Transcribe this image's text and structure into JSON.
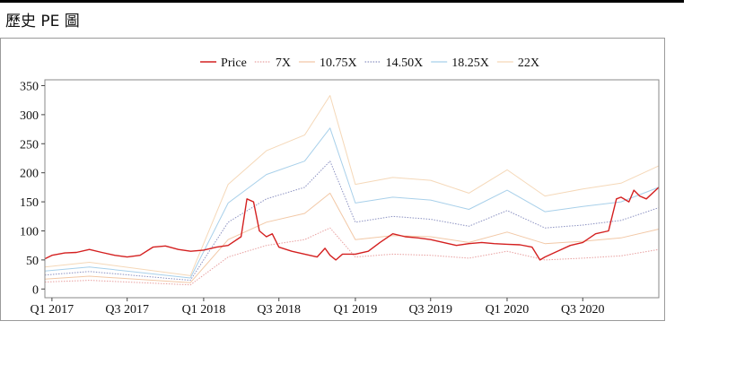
{
  "page": {
    "title": "歷史 PE 圖"
  },
  "chart_data": {
    "type": "line",
    "title": "",
    "xlabel": "",
    "ylabel": "",
    "xlim": [
      "2016-12-15",
      "2020-12-31"
    ],
    "ylim": [
      -15,
      360
    ],
    "yticks": [
      0,
      50,
      100,
      150,
      200,
      250,
      300,
      350
    ],
    "xticks": [
      {
        "date": "2017-01-01",
        "label": "Q1 2017"
      },
      {
        "date": "2017-07-01",
        "label": "Q3 2017"
      },
      {
        "date": "2018-01-01",
        "label": "Q1 2018"
      },
      {
        "date": "2018-07-01",
        "label": "Q3 2018"
      },
      {
        "date": "2019-01-01",
        "label": "Q1 2019"
      },
      {
        "date": "2019-07-01",
        "label": "Q3 2019"
      },
      {
        "date": "2020-01-01",
        "label": "Q1 2020"
      },
      {
        "date": "2020-07-01",
        "label": "Q3 2020"
      }
    ],
    "grid": false,
    "legend_position": "top",
    "series": [
      {
        "name": "Price",
        "color": "#d42020",
        "style": "solid",
        "points": [
          [
            "2016-12-15",
            52
          ],
          [
            "2017-01-01",
            58
          ],
          [
            "2017-02-01",
            62
          ],
          [
            "2017-03-01",
            63
          ],
          [
            "2017-04-01",
            68
          ],
          [
            "2017-05-01",
            63
          ],
          [
            "2017-06-01",
            58
          ],
          [
            "2017-07-01",
            55
          ],
          [
            "2017-08-01",
            58
          ],
          [
            "2017-09-01",
            72
          ],
          [
            "2017-10-01",
            74
          ],
          [
            "2017-11-01",
            68
          ],
          [
            "2017-12-01",
            65
          ],
          [
            "2018-01-01",
            67
          ],
          [
            "2018-02-01",
            72
          ],
          [
            "2018-03-01",
            75
          ],
          [
            "2018-04-01",
            90
          ],
          [
            "2018-04-15",
            155
          ],
          [
            "2018-05-01",
            150
          ],
          [
            "2018-05-15",
            100
          ],
          [
            "2018-06-01",
            90
          ],
          [
            "2018-06-15",
            95
          ],
          [
            "2018-07-01",
            72
          ],
          [
            "2018-08-01",
            65
          ],
          [
            "2018-09-01",
            60
          ],
          [
            "2018-10-01",
            55
          ],
          [
            "2018-10-20",
            70
          ],
          [
            "2018-11-01",
            58
          ],
          [
            "2018-11-15",
            50
          ],
          [
            "2018-12-01",
            60
          ],
          [
            "2019-01-01",
            60
          ],
          [
            "2019-02-01",
            65
          ],
          [
            "2019-03-01",
            80
          ],
          [
            "2019-04-01",
            95
          ],
          [
            "2019-05-01",
            90
          ],
          [
            "2019-06-01",
            88
          ],
          [
            "2019-07-01",
            85
          ],
          [
            "2019-08-01",
            80
          ],
          [
            "2019-09-01",
            75
          ],
          [
            "2019-10-01",
            78
          ],
          [
            "2019-11-01",
            80
          ],
          [
            "2019-12-01",
            78
          ],
          [
            "2020-01-01",
            77
          ],
          [
            "2020-02-01",
            76
          ],
          [
            "2020-03-01",
            72
          ],
          [
            "2020-03-20",
            50
          ],
          [
            "2020-04-01",
            55
          ],
          [
            "2020-05-01",
            65
          ],
          [
            "2020-06-01",
            75
          ],
          [
            "2020-07-01",
            80
          ],
          [
            "2020-08-01",
            95
          ],
          [
            "2020-09-01",
            100
          ],
          [
            "2020-09-20",
            155
          ],
          [
            "2020-10-01",
            158
          ],
          [
            "2020-10-20",
            150
          ],
          [
            "2020-11-01",
            170
          ],
          [
            "2020-11-15",
            160
          ],
          [
            "2020-12-01",
            155
          ],
          [
            "2020-12-31",
            175
          ]
        ]
      },
      {
        "name": "7X",
        "color": "#e8a0a0",
        "style": "dotted",
        "points": [
          [
            "2016-12-15",
            12
          ],
          [
            "2017-04-01",
            15
          ],
          [
            "2017-11-30",
            7
          ],
          [
            "2018-03-01",
            55
          ],
          [
            "2018-06-01",
            75
          ],
          [
            "2018-09-01",
            85
          ],
          [
            "2018-11-01",
            105
          ],
          [
            "2019-01-01",
            55
          ],
          [
            "2019-04-01",
            60
          ],
          [
            "2019-07-01",
            58
          ],
          [
            "2019-10-01",
            53
          ],
          [
            "2020-01-01",
            65
          ],
          [
            "2020-04-01",
            50
          ],
          [
            "2020-07-01",
            53
          ],
          [
            "2020-10-01",
            57
          ],
          [
            "2020-12-31",
            68
          ]
        ]
      },
      {
        "name": "10.75X",
        "color": "#f2c8a6",
        "style": "solid",
        "points": [
          [
            "2016-12-15",
            17
          ],
          [
            "2017-04-01",
            22
          ],
          [
            "2017-11-30",
            11
          ],
          [
            "2018-03-01",
            85
          ],
          [
            "2018-06-01",
            115
          ],
          [
            "2018-09-01",
            130
          ],
          [
            "2018-11-01",
            165
          ],
          [
            "2019-01-01",
            85
          ],
          [
            "2019-04-01",
            92
          ],
          [
            "2019-07-01",
            90
          ],
          [
            "2019-10-01",
            80
          ],
          [
            "2020-01-01",
            98
          ],
          [
            "2020-04-01",
            78
          ],
          [
            "2020-07-01",
            82
          ],
          [
            "2020-10-01",
            88
          ],
          [
            "2020-12-31",
            103
          ]
        ]
      },
      {
        "name": "14.50X",
        "color": "#8c92c2",
        "style": "dotted",
        "points": [
          [
            "2016-12-15",
            24
          ],
          [
            "2017-04-01",
            30
          ],
          [
            "2017-11-30",
            15
          ],
          [
            "2018-03-01",
            115
          ],
          [
            "2018-06-01",
            155
          ],
          [
            "2018-09-01",
            175
          ],
          [
            "2018-11-01",
            220
          ],
          [
            "2019-01-01",
            115
          ],
          [
            "2019-04-01",
            125
          ],
          [
            "2019-07-01",
            120
          ],
          [
            "2019-10-01",
            108
          ],
          [
            "2020-01-01",
            135
          ],
          [
            "2020-04-01",
            105
          ],
          [
            "2020-07-01",
            110
          ],
          [
            "2020-10-01",
            118
          ],
          [
            "2020-12-31",
            140
          ]
        ]
      },
      {
        "name": "18.25X",
        "color": "#a8d0ea",
        "style": "solid",
        "points": [
          [
            "2016-12-15",
            31
          ],
          [
            "2017-04-01",
            38
          ],
          [
            "2017-11-30",
            19
          ],
          [
            "2018-03-01",
            148
          ],
          [
            "2018-06-01",
            197
          ],
          [
            "2018-09-01",
            220
          ],
          [
            "2018-11-01",
            277
          ],
          [
            "2019-01-01",
            148
          ],
          [
            "2019-04-01",
            158
          ],
          [
            "2019-07-01",
            153
          ],
          [
            "2019-10-01",
            137
          ],
          [
            "2020-01-01",
            170
          ],
          [
            "2020-04-01",
            133
          ],
          [
            "2020-07-01",
            142
          ],
          [
            "2020-10-01",
            150
          ],
          [
            "2020-12-31",
            175
          ]
        ]
      },
      {
        "name": "22X",
        "color": "#f5d8b8",
        "style": "solid",
        "points": [
          [
            "2016-12-15",
            38
          ],
          [
            "2017-04-01",
            46
          ],
          [
            "2017-11-30",
            23
          ],
          [
            "2018-03-01",
            180
          ],
          [
            "2018-06-01",
            238
          ],
          [
            "2018-09-01",
            265
          ],
          [
            "2018-11-01",
            333
          ],
          [
            "2019-01-01",
            180
          ],
          [
            "2019-04-01",
            192
          ],
          [
            "2019-07-01",
            187
          ],
          [
            "2019-10-01",
            165
          ],
          [
            "2020-01-01",
            205
          ],
          [
            "2020-04-01",
            160
          ],
          [
            "2020-07-01",
            172
          ],
          [
            "2020-10-01",
            182
          ],
          [
            "2020-12-31",
            212
          ]
        ]
      }
    ]
  }
}
